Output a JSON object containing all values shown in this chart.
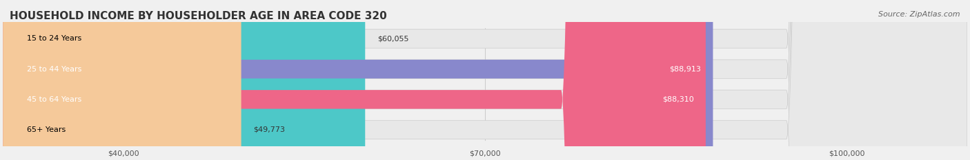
{
  "title": "HOUSEHOLD INCOME BY HOUSEHOLDER AGE IN AREA CODE 320",
  "source": "Source: ZipAtlas.com",
  "categories": [
    "15 to 24 Years",
    "25 to 44 Years",
    "45 to 64 Years",
    "65+ Years"
  ],
  "values": [
    60055,
    88913,
    88310,
    49773
  ],
  "bar_colors": [
    "#4DC8C8",
    "#8888CC",
    "#EE6688",
    "#F5C99A"
  ],
  "bar_labels": [
    "$60,055",
    "$88,913",
    "$88,310",
    "$49,773"
  ],
  "label_colors": [
    "#333333",
    "#ffffff",
    "#ffffff",
    "#333333"
  ],
  "x_min": 30000,
  "x_max": 110000,
  "x_ticks": [
    40000,
    70000,
    100000
  ],
  "x_tick_labels": [
    "$40,000",
    "$70,000",
    "$100,000"
  ],
  "background_color": "#f0f0f0",
  "bar_background": "#e8e8e8",
  "title_fontsize": 11,
  "source_fontsize": 8,
  "label_fontsize": 8,
  "category_fontsize": 8,
  "tick_fontsize": 8
}
